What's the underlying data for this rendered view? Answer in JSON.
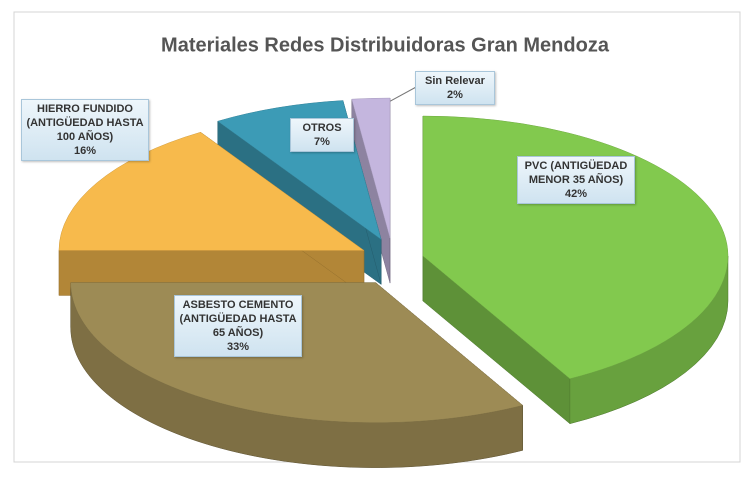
{
  "chart_data": {
    "type": "pie3d",
    "title": "Materiales Redes Distribuidoras Gran Mendoza",
    "categories": [
      "PVC (ANTIGÜEDAD MENOR 35 AÑOS)",
      "ASBESTO CEMENTO (ANTIGÜEDAD HASTA 65 AÑOS)",
      "HIERRO FUNDIDO (ANTIGÜEDAD HASTA 100 AÑOS)",
      "OTROS",
      "Sin Relevar"
    ],
    "values": [
      42,
      33,
      16,
      7,
      2
    ],
    "value_labels": [
      "42%",
      "33%",
      "16%",
      "7%",
      "2%"
    ],
    "colors": [
      "#82c94e",
      "#9d8b55",
      "#f7ba4c",
      "#3c9bb6",
      "#c4b6de"
    ]
  }
}
